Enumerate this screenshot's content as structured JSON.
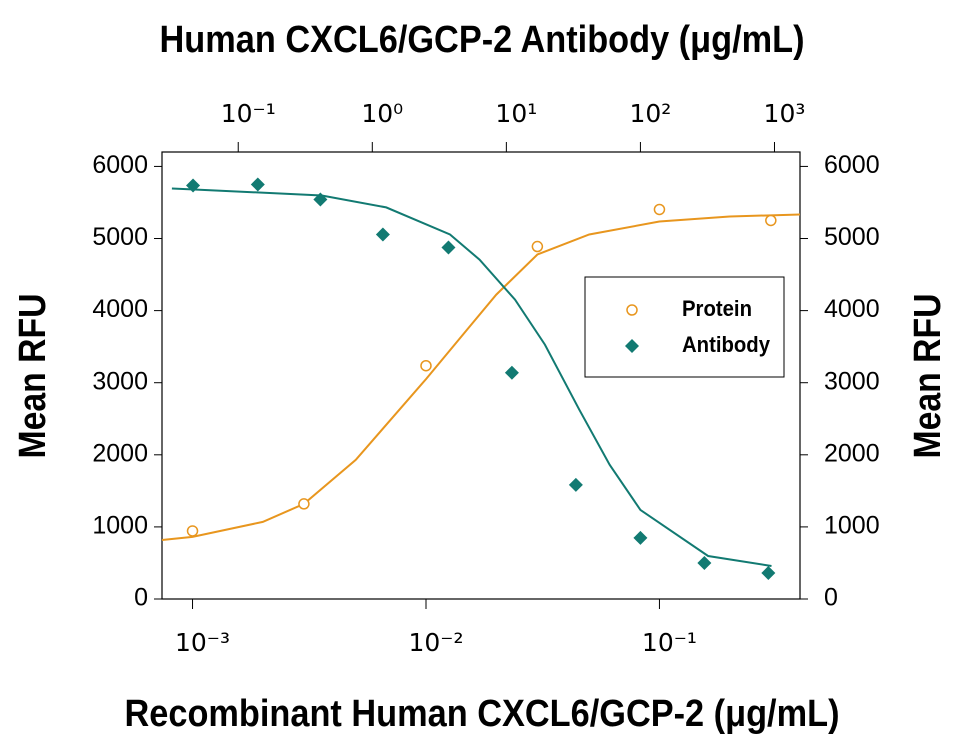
{
  "chart_data": {
    "type": "scatter",
    "xlabel": "Recombinant Human CXCL6/GCP-2  (μg/mL)",
    "x2label": "Human CXCL6/GCP-2  Antibody (μg/mL)",
    "ylabel": "Mean RFU",
    "y2label": "Mean RFU",
    "xscale": "log",
    "x2scale": "log",
    "xlim": [
      0.00074,
      0.4
    ],
    "xticks": [
      {
        "value": 0.001,
        "label": "10⁻³"
      },
      {
        "value": 0.01,
        "label": "10⁻²"
      },
      {
        "value": 0.1,
        "label": "10⁻¹"
      }
    ],
    "x2lim": [
      0.027,
      1550
    ],
    "x2ticks": [
      {
        "value": 0.1,
        "label": "10⁻¹"
      },
      {
        "value": 1,
        "label": "10⁰"
      },
      {
        "value": 10,
        "label": "10¹"
      },
      {
        "value": 100,
        "label": "10²"
      },
      {
        "value": 1000,
        "label": "10³"
      }
    ],
    "ylim": [
      0,
      6200
    ],
    "yticks": [
      0,
      1000,
      2000,
      3000,
      4000,
      5000,
      6000
    ],
    "y2lim": [
      0,
      6200
    ],
    "y2ticks": [
      0,
      1000,
      2000,
      3000,
      4000,
      5000,
      6000
    ],
    "legend": "right",
    "series": [
      {
        "name": "Protein",
        "color": "#e8961e",
        "marker": "circle",
        "x": [
          0.001,
          0.003,
          0.01,
          0.03,
          0.1,
          0.3
        ],
        "values": [
          944,
          1319,
          3236,
          4889,
          5403,
          5250
        ]
      },
      {
        "name": "Antibody",
        "color": "#127a72",
        "marker": "diamond",
        "axis": "x2",
        "x": [
          0.046,
          0.14,
          0.41,
          1.2,
          3.7,
          11,
          33,
          100,
          300,
          900
        ],
        "values": [
          5736,
          5750,
          5542,
          5056,
          4875,
          3139,
          1583,
          847,
          500,
          361
        ]
      }
    ],
    "fits": [
      {
        "color": "#e8961e",
        "x": [
          0.00074,
          0.001,
          0.002,
          0.003,
          0.005,
          0.01,
          0.015,
          0.02,
          0.03,
          0.05,
          0.1,
          0.2,
          0.4
        ],
        "values": [
          819,
          861,
          1069,
          1319,
          1930,
          3050,
          3736,
          4222,
          4778,
          5056,
          5236,
          5306,
          5333
        ]
      },
      {
        "color": "#127a72",
        "axis": "x2",
        "x": [
          0.032,
          0.047,
          0.42,
          1.27,
          3.8,
          6.3,
          11.6,
          19.4,
          35,
          59,
          100,
          320,
          950
        ],
        "values": [
          5694,
          5680,
          5597,
          5431,
          5056,
          4708,
          4153,
          3528,
          2625,
          1861,
          1236,
          597,
          458
        ]
      }
    ]
  }
}
